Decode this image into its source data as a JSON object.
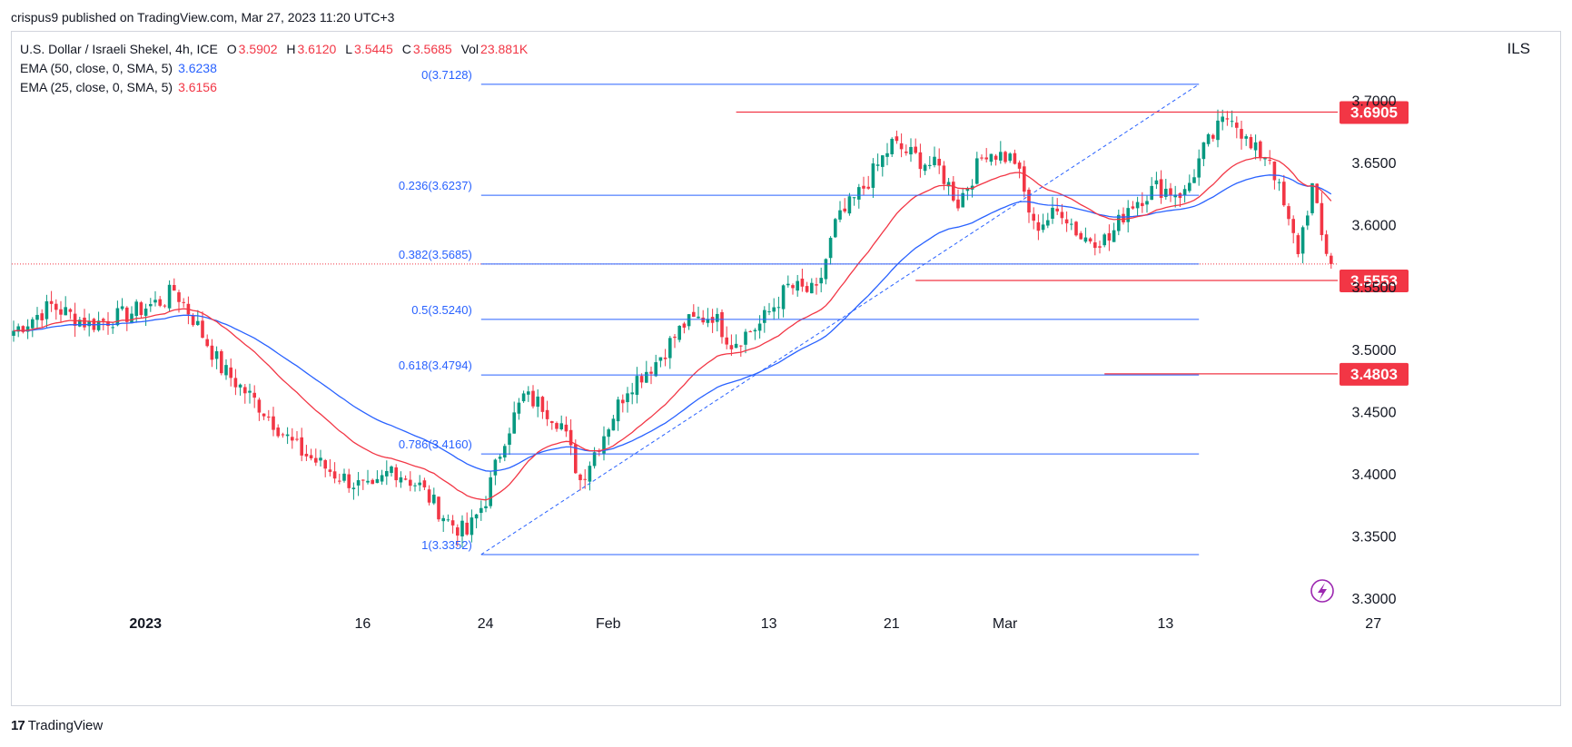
{
  "header": {
    "published_line": "crispus9 published on TradingView.com, Mar 27, 2023 11:20 UTC+3"
  },
  "legend": {
    "symbol": "U.S. Dollar / Israeli Shekel, 4h, ICE",
    "o_label": "O",
    "o_value": "3.5902",
    "h_label": "H",
    "h_value": "3.6120",
    "l_label": "L",
    "l_value": "3.5445",
    "c_label": "C",
    "c_value": "3.5685",
    "vol_label": "Vol",
    "vol_value": "23.881K",
    "ema50_label": "EMA (50, close, 0, SMA, 5)",
    "ema50_value": "3.6238",
    "ema25_label": "EMA (25, close, 0, SMA, 5)",
    "ema25_value": "3.6156"
  },
  "currency": "ILS",
  "footer": {
    "brand": "TradingView",
    "logo": "17"
  },
  "colors": {
    "up": "#089981",
    "down": "#f23645",
    "fib": "#2962ff",
    "ema50": "#2962ff",
    "ema25": "#f23645",
    "price_tag": "#f23645"
  },
  "chart_data": {
    "type": "candlestick",
    "timeframe": "4h",
    "ylim": [
      3.3,
      3.72
    ],
    "y_ticks": [
      "3.7000",
      "3.6500",
      "3.6000",
      "3.5500",
      "3.5000",
      "3.4500",
      "3.4000",
      "3.3500",
      "3.3000"
    ],
    "y_tick_values": [
      3.7,
      3.65,
      3.6,
      3.55,
      3.5,
      3.45,
      3.4,
      3.35,
      3.3
    ],
    "x_ticks": [
      "2023",
      "16",
      "24",
      "Feb",
      "13",
      "21",
      "Mar",
      "13",
      "27"
    ],
    "x_tick_index": [
      16,
      62,
      88,
      114,
      148,
      174,
      198,
      232,
      276
    ],
    "n_bars": 280,
    "anchors": [
      [
        0,
        3.515
      ],
      [
        8,
        3.535
      ],
      [
        16,
        3.52
      ],
      [
        24,
        3.528
      ],
      [
        32,
        3.54
      ],
      [
        34,
        3.548
      ],
      [
        38,
        3.525
      ],
      [
        44,
        3.485
      ],
      [
        52,
        3.455
      ],
      [
        60,
        3.42
      ],
      [
        68,
        3.4
      ],
      [
        76,
        3.385
      ],
      [
        80,
        3.405
      ],
      [
        86,
        3.39
      ],
      [
        92,
        3.362
      ],
      [
        96,
        3.352
      ],
      [
        100,
        3.38
      ],
      [
        104,
        3.43
      ],
      [
        108,
        3.462
      ],
      [
        112,
        3.455
      ],
      [
        116,
        3.44
      ],
      [
        120,
        3.395
      ],
      [
        124,
        3.425
      ],
      [
        130,
        3.47
      ],
      [
        136,
        3.49
      ],
      [
        142,
        3.52
      ],
      [
        148,
        3.528
      ],
      [
        152,
        3.505
      ],
      [
        158,
        3.52
      ],
      [
        164,
        3.55
      ],
      [
        170,
        3.545
      ],
      [
        174,
        3.6
      ],
      [
        180,
        3.63
      ],
      [
        186,
        3.665
      ],
      [
        192,
        3.652
      ],
      [
        196,
        3.645
      ],
      [
        200,
        3.618
      ],
      [
        206,
        3.66
      ],
      [
        212,
        3.652
      ],
      [
        216,
        3.598
      ],
      [
        222,
        3.612
      ],
      [
        226,
        3.59
      ],
      [
        232,
        3.588
      ],
      [
        236,
        3.615
      ],
      [
        242,
        3.63
      ],
      [
        248,
        3.625
      ],
      [
        252,
        3.66
      ],
      [
        256,
        3.682
      ],
      [
        258,
        3.69
      ],
      [
        262,
        3.66
      ],
      [
        266,
        3.655
      ],
      [
        270,
        3.6
      ],
      [
        272,
        3.58
      ],
      [
        275,
        3.63
      ],
      [
        277,
        3.59
      ],
      [
        279,
        3.5685
      ]
    ],
    "ema50_last": 3.6238,
    "ema25_last": 3.6156,
    "fib_levels": [
      {
        "label": "0(3.7128)",
        "ratio": 0,
        "price": 3.7128
      },
      {
        "label": "0.236(3.6237)",
        "ratio": 0.236,
        "price": 3.6237
      },
      {
        "label": "0.382(3.5685)",
        "ratio": 0.382,
        "price": 3.5685
      },
      {
        "label": "0.5(3.5240)",
        "ratio": 0.5,
        "price": 3.524
      },
      {
        "label": "0.618(3.4794)",
        "ratio": 0.618,
        "price": 3.4794
      },
      {
        "label": "0.786(3.4160)",
        "ratio": 0.786,
        "price": 3.416
      },
      {
        "label": "1(3.3352)",
        "ratio": 1,
        "price": 3.3352
      }
    ],
    "fib_range_bars": [
      99,
      251
    ],
    "trend_line": {
      "from": [
        99,
        3.3352
      ],
      "to": [
        251,
        3.7128
      ]
    },
    "horizontal_levels": [
      {
        "price": 3.6905,
        "tag": "3.6905",
        "from_bar": 153
      },
      {
        "price": 3.5553,
        "tag": "3.5553",
        "from_bar": 191
      },
      {
        "price": 3.4803,
        "tag": "3.4803",
        "from_bar": 231
      }
    ],
    "last_price": 3.5685
  }
}
